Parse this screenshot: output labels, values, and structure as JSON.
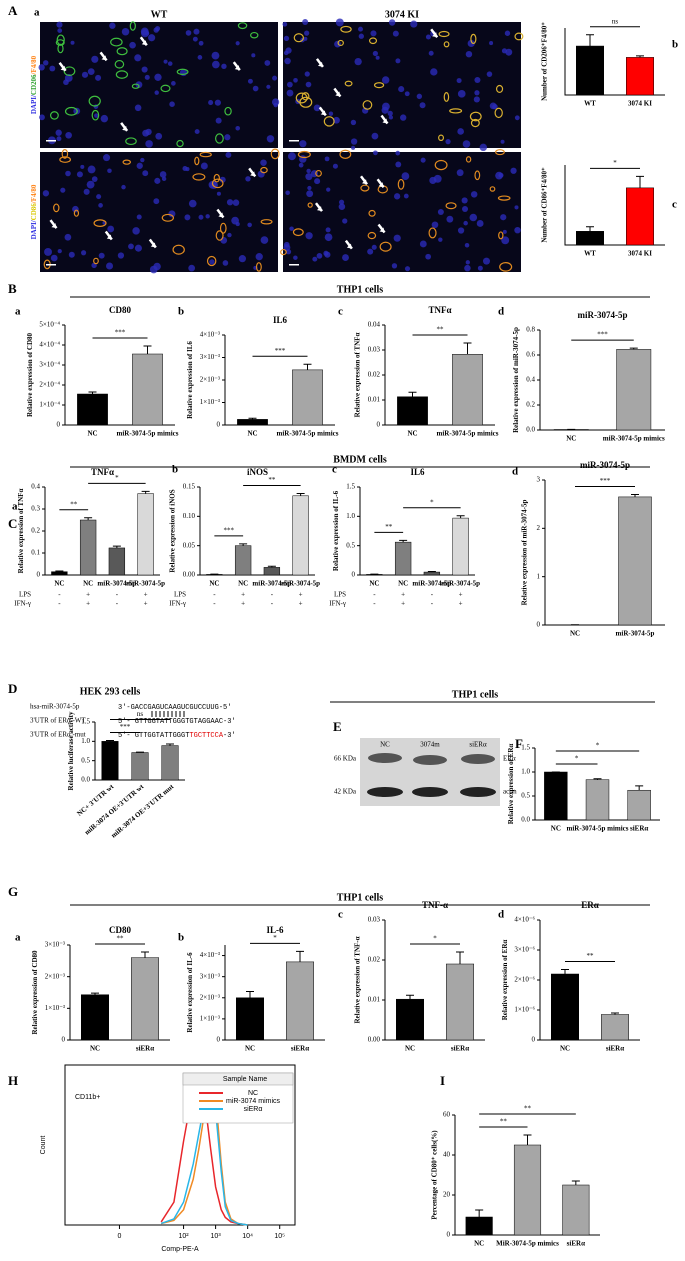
{
  "figure": {
    "panels": [
      "A",
      "B",
      "C",
      "D",
      "E",
      "F",
      "G",
      "H",
      "I"
    ],
    "headers": [
      "THP1 cells",
      "BMDM cells",
      "HEK 293 cells",
      "THP1 cells",
      "THP1 cells"
    ],
    "micro": {
      "sublabel": "a",
      "columns": [
        "WT",
        "3074 KI"
      ],
      "rows": [
        [
          "DAPI/",
          "CD206",
          "/F4/80"
        ],
        [
          "DAPI/",
          "CD86",
          "/F4/80"
        ]
      ]
    },
    "sequences": {
      "names": [
        "hsa-miR-3074-5p",
        "3'UTR of ERα -WT",
        "3'UTR of ERα -mut"
      ],
      "seqs": [
        "3'-GACCGAGUCAAGUCGUCCUUG-5'",
        "5'- GTTGGTATTGGGTGTAGGAAC-3'"
      ],
      "mut": [
        "5'- GTTGGTATTGGGT",
        "TGCTTCCA",
        "-3'"
      ]
    },
    "blot": {
      "lanes": [
        "NC",
        "3074m",
        "siERα"
      ],
      "markers": [
        "66 KDa",
        "42 KDa"
      ],
      "proteins": [
        "ERα",
        "actin"
      ]
    }
  },
  "chart_data": [
    {
      "type": "bar",
      "label": "b",
      "ylabel": "Number of CD206⁺F4/80⁺",
      "categories": [
        "WT",
        "3074 KI"
      ],
      "values": [
        95,
        73
      ],
      "errors": [
        22,
        3
      ],
      "colors": [
        "#000000",
        "#ff0000"
      ],
      "ylim": [
        0,
        130
      ],
      "sig": [
        {
          "from": 0,
          "to": 1,
          "label": "ns"
        }
      ]
    },
    {
      "type": "bar",
      "label": "c",
      "ylabel": "Number of CD86⁺F4/80⁺",
      "categories": [
        "WT",
        "3074 KI"
      ],
      "values": [
        6,
        25
      ],
      "errors": [
        2,
        5
      ],
      "colors": [
        "#000000",
        "#ff0000"
      ],
      "ylim": [
        0,
        35
      ],
      "sig": [
        {
          "from": 0,
          "to": 1,
          "label": "*"
        }
      ]
    },
    {
      "type": "bar",
      "label": "a",
      "title": "CD80",
      "ylabel": "Relative expression of CD80",
      "categories": [
        "NC",
        "miR-3074-5p mimics"
      ],
      "values": [
        0.000155,
        0.000355
      ],
      "errors": [
        1e-05,
        4e-05
      ],
      "colors": [
        "#000000",
        "#a6a6a6"
      ],
      "ylim": [
        0,
        0.0005
      ],
      "yticks": [
        0,
        {
          "value": 0.0001,
          "label": "1×10⁻⁴"
        },
        {
          "value": 0.0002,
          "label": "2×10⁻⁴"
        },
        {
          "value": 0.0003,
          "label": "3×10⁻⁴"
        },
        {
          "value": 0.0004,
          "label": "4×10⁻⁴"
        },
        {
          "value": 0.0005,
          "label": "5×10⁻⁴"
        }
      ],
      "sig": [
        {
          "from": 0,
          "to": 1,
          "label": "***"
        }
      ]
    },
    {
      "type": "bar",
      "label": "b",
      "title": "IL6",
      "ylabel": "Relative expression of IL6",
      "categories": [
        "NC",
        "miR-3074-5p mimics"
      ],
      "values": [
        0.00025,
        0.00245
      ],
      "errors": [
        5e-05,
        0.00025
      ],
      "colors": [
        "#000000",
        "#a6a6a6"
      ],
      "ylim": [
        0,
        0.004
      ],
      "yticks": [
        0,
        {
          "value": 0.001,
          "label": "1×10⁻³"
        },
        {
          "value": 0.002,
          "label": "2×10⁻³"
        },
        {
          "value": 0.003,
          "label": "3×10⁻³"
        },
        {
          "value": 0.004,
          "label": "4×10⁻³"
        }
      ],
      "sig": [
        {
          "from": 0,
          "to": 1,
          "label": "***"
        }
      ]
    },
    {
      "type": "bar",
      "label": "c",
      "title": "TNFα",
      "ylabel": "Relative expression of TNFα",
      "categories": [
        "NC",
        "miR-3074-5p mimics"
      ],
      "values": [
        0.0113,
        0.0283
      ],
      "errors": [
        0.0018,
        0.0045
      ],
      "colors": [
        "#000000",
        "#a6a6a6"
      ],
      "ylim": [
        0,
        0.04
      ],
      "yticks": [
        0,
        0.01,
        0.02,
        0.03,
        0.04
      ],
      "sig": [
        {
          "from": 0,
          "to": 1,
          "label": "**"
        }
      ]
    },
    {
      "type": "bar",
      "label": "d",
      "title": "miR-3074-5p",
      "ylabel": "Relative expression of miR-3074-5p",
      "categories": [
        "NC",
        "miR-3074-5p mimics"
      ],
      "values": [
        0.004,
        0.645
      ],
      "errors": [
        0.001,
        0.01
      ],
      "colors": [
        "#000000",
        "#a6a6a6"
      ],
      "ylim": [
        0,
        0.8
      ],
      "yticks": [
        {
          "value": 0,
          "label": "0.0"
        },
        0.2,
        0.4,
        0.6,
        0.8
      ],
      "sig": [
        {
          "from": 0,
          "to": 1,
          "label": "***"
        }
      ]
    },
    {
      "type": "bar",
      "label": "a",
      "title": "TNFα",
      "ylabel": "Relative expression of TNFα",
      "categories": [
        "NC",
        "NC",
        "miR-3074-5p",
        "miR-3074-5p"
      ],
      "values": [
        0.015,
        0.25,
        0.123,
        0.37
      ],
      "errors": [
        0.003,
        0.01,
        0.008,
        0.01
      ],
      "colors": [
        "#000000",
        "#7f7f7f",
        "#595959",
        "#d9d9d9"
      ],
      "ylim": [
        0,
        0.4
      ],
      "yticks": [
        0,
        0.1,
        0.2,
        0.3,
        0.4
      ],
      "rows": [
        {
          "name": "LPS",
          "values": [
            "-",
            "+",
            "-",
            "+"
          ]
        },
        {
          "name": "IFN-γ",
          "values": [
            "-",
            "+",
            "-",
            "+"
          ]
        }
      ],
      "sig": [
        {
          "from": 0,
          "to": 1,
          "label": "**"
        },
        {
          "from": 1,
          "to": 3,
          "label": "*"
        }
      ]
    },
    {
      "type": "bar",
      "label": "b",
      "title": "iNOS",
      "ylabel": "Relative expression of iNOS",
      "categories": [
        "NC",
        "NC",
        "miR-3074-5p",
        "miR-3074-5p"
      ],
      "values": [
        0.001,
        0.05,
        0.013,
        0.135
      ],
      "errors": [
        0.0005,
        0.003,
        0.002,
        0.004
      ],
      "colors": [
        "#000000",
        "#7f7f7f",
        "#595959",
        "#d9d9d9"
      ],
      "ylim": [
        0,
        0.15
      ],
      "yticks": [
        {
          "value": 0,
          "label": "0.00"
        },
        0.05,
        {
          "value": 0.1,
          "label": "0.10"
        },
        0.15
      ],
      "rows": [
        {
          "name": "LPS",
          "values": [
            "-",
            "+",
            "-",
            "+"
          ]
        },
        {
          "name": "IFN-γ",
          "values": [
            "-",
            "+",
            "-",
            "+"
          ]
        }
      ],
      "sig": [
        {
          "from": 0,
          "to": 1,
          "label": "***"
        },
        {
          "from": 1,
          "to": 3,
          "label": "**"
        }
      ]
    },
    {
      "type": "bar",
      "label": "c",
      "title": "IL6",
      "ylabel": "Relative expression of IL-6",
      "categories": [
        "NC",
        "NC",
        "miR-3074-5p",
        "miR-3074-5p"
      ],
      "values": [
        0.01,
        0.56,
        0.05,
        0.97
      ],
      "errors": [
        0.005,
        0.03,
        0.01,
        0.04
      ],
      "colors": [
        "#000000",
        "#7f7f7f",
        "#595959",
        "#d9d9d9"
      ],
      "ylim": [
        0,
        1.5
      ],
      "yticks": [
        0,
        0.5,
        {
          "value": 1,
          "label": "1.0"
        },
        1.5
      ],
      "rows": [
        {
          "name": "LPS",
          "values": [
            "-",
            "+",
            "-",
            "+"
          ]
        },
        {
          "name": "IFN-γ",
          "values": [
            "-",
            "+",
            "-",
            "+"
          ]
        }
      ],
      "sig": [
        {
          "from": 0,
          "to": 1,
          "label": "**"
        },
        {
          "from": 1,
          "to": 3,
          "label": "*"
        }
      ]
    },
    {
      "type": "bar",
      "label": "d",
      "title": "miR-3074-5p",
      "ylabel": "Relative expression of miR-3074-5p",
      "categories": [
        "NC",
        "miR-3074-5p"
      ],
      "values": [
        0.005,
        2.65
      ],
      "errors": [
        0.001,
        0.05
      ],
      "colors": [
        "#000000",
        "#a6a6a6"
      ],
      "ylim": [
        0,
        3
      ],
      "yticks": [
        0,
        1,
        2,
        3
      ],
      "sig": [
        {
          "from": 0,
          "to": 1,
          "label": "***"
        }
      ]
    },
    {
      "type": "bar",
      "ylabel": "Relative luciferase activity",
      "categories": [
        "NC+ 3'UTR wt",
        "miR-3074 OE+3'UTR wt",
        "miR-3074 OE+3'UTR mut"
      ],
      "values": [
        1.0,
        0.71,
        0.89
      ],
      "errors": [
        0.02,
        0.01,
        0.04
      ],
      "colors": [
        "#000000",
        "#7f7f7f",
        "#7f7f7f"
      ],
      "ylim": [
        0,
        1.5
      ],
      "yticks": [
        {
          "value": 0,
          "label": "0.0"
        },
        0.5,
        {
          "value": 1,
          "label": "1.0"
        },
        1.5
      ],
      "rotate_labels": true,
      "sig": [
        {
          "from": 0,
          "to": 1,
          "label": "***"
        },
        {
          "from": 0,
          "to": 2,
          "label": "ns"
        }
      ]
    },
    {
      "type": "bar",
      "ylabel": "Relative expression of ERα",
      "categories": [
        "NC",
        "miR-3074-5p mimics",
        "siERα"
      ],
      "values": [
        1.0,
        0.84,
        0.62
      ],
      "errors": [
        0,
        0.02,
        0.09
      ],
      "colors": [
        "#000000",
        "#a6a6a6",
        "#a6a6a6"
      ],
      "ylim": [
        0,
        1.5
      ],
      "yticks": [
        {
          "value": 0,
          "label": "0.0"
        },
        0.5,
        {
          "value": 1,
          "label": "1.0"
        },
        1.5
      ],
      "sig": [
        {
          "from": 0,
          "to": 1,
          "label": "*"
        },
        {
          "from": 0,
          "to": 2,
          "label": "*"
        }
      ]
    },
    {
      "type": "bar",
      "label": "a",
      "title": "CD80",
      "ylabel": "Relative expression of CD80",
      "categories": [
        "NC",
        "siERα"
      ],
      "values": [
        0.00143,
        0.0026
      ],
      "errors": [
        5e-05,
        0.00018
      ],
      "colors": [
        "#000000",
        "#a6a6a6"
      ],
      "ylim": [
        0,
        0.003
      ],
      "yticks": [
        0,
        {
          "value": 0.001,
          "label": "1×10⁻³"
        },
        {
          "value": 0.002,
          "label": "2×10⁻³"
        },
        {
          "value": 0.003,
          "label": "3×10⁻³"
        }
      ],
      "sig": [
        {
          "from": 0,
          "to": 1,
          "label": "**"
        }
      ]
    },
    {
      "type": "bar",
      "label": "b",
      "title": "IL-6",
      "ylabel": "Relative expression of IL-6",
      "categories": [
        "NC",
        "siERα"
      ],
      "values": [
        0.002,
        0.0037
      ],
      "errors": [
        0.0003,
        0.0005
      ],
      "colors": [
        "#000000",
        "#a6a6a6"
      ],
      "ylim": [
        0,
        0.0045
      ],
      "yticks": [
        0,
        {
          "value": 0.001,
          "label": "1×10⁻³"
        },
        {
          "value": 0.002,
          "label": "2×10⁻³"
        },
        {
          "value": 0.003,
          "label": "3×10⁻³"
        },
        {
          "value": 0.004,
          "label": "4×10⁻³"
        }
      ],
      "sig": [
        {
          "from": 0,
          "to": 1,
          "label": "*"
        }
      ]
    },
    {
      "type": "bar",
      "label": "c",
      "title": "TNF-α",
      "ylabel": "Relative expression of TNF-α",
      "categories": [
        "NC",
        "siERα"
      ],
      "values": [
        0.0102,
        0.019
      ],
      "errors": [
        0.001,
        0.003
      ],
      "colors": [
        "#000000",
        "#a6a6a6"
      ],
      "ylim": [
        0,
        0.03
      ],
      "yticks": [
        {
          "value": 0,
          "label": "0.00"
        },
        0.01,
        0.02,
        0.03
      ],
      "sig": [
        {
          "from": 0,
          "to": 1,
          "label": "*"
        }
      ]
    },
    {
      "type": "bar",
      "label": "d",
      "title": "ERα",
      "ylabel": "Relative expression of ERα",
      "categories": [
        "NC",
        "siERα"
      ],
      "values": [
        2.2e-06,
        8.5e-07
      ],
      "errors": [
        1.5e-07,
        5e-08
      ],
      "colors": [
        "#000000",
        "#a6a6a6"
      ],
      "ylim": [
        0,
        4e-06
      ],
      "yticks": [
        0,
        {
          "value": 1e-06,
          "label": "1×10⁻⁶"
        },
        {
          "value": 2e-06,
          "label": "2×10⁻⁶"
        },
        {
          "value": 3e-06,
          "label": "3×10⁻⁶"
        },
        {
          "value": 4e-06,
          "label": "4×10⁻⁶"
        }
      ],
      "sig": [
        {
          "from": 0,
          "to": 1,
          "label": "**"
        }
      ]
    },
    {
      "type": "line",
      "annotation": "CD11b+",
      "ylabel": "Count",
      "xlabel": "Comp-PE-A",
      "xscale": "biexponential",
      "xlim": [
        -50,
        300000
      ],
      "ylim": [
        0,
        105
      ],
      "xticks": [
        0,
        {
          "value": 100,
          "label": "10²"
        },
        {
          "value": 1000,
          "label": "10³"
        },
        {
          "value": 10000,
          "label": "10⁴"
        },
        {
          "value": 100000,
          "label": "10⁵"
        }
      ],
      "legend_title": "Sample Name",
      "legend": "upper right",
      "x": [
        20,
        50,
        100,
        200,
        300,
        500,
        700,
        1000,
        1500,
        2000,
        3000,
        5000,
        10000
      ],
      "series": [
        {
          "name": "NC",
          "color": "#e8262b",
          "values": [
            2,
            15,
            55,
            90,
            95,
            75,
            50,
            25,
            10,
            5,
            2,
            1,
            0
          ]
        },
        {
          "name": "miR-3074 mimics",
          "color": "#f08a24",
          "values": [
            1,
            3,
            10,
            30,
            50,
            80,
            97,
            85,
            40,
            15,
            4,
            1,
            0
          ]
        },
        {
          "name": "siERα",
          "color": "#29b6e8",
          "values": [
            1,
            4,
            15,
            40,
            60,
            85,
            95,
            75,
            35,
            12,
            3,
            1,
            0
          ]
        }
      ]
    },
    {
      "type": "bar",
      "ylabel": "Percentage of CD80⁺ cells(%)",
      "categories": [
        "NC",
        "MiR-3074-5p mimics",
        "siERα"
      ],
      "values": [
        9,
        45,
        25
      ],
      "errors": [
        3.5,
        5,
        2
      ],
      "colors": [
        "#000000",
        "#a6a6a6",
        "#a6a6a6"
      ],
      "ylim": [
        0,
        60
      ],
      "yticks": [
        0,
        20,
        40,
        60
      ],
      "sig": [
        {
          "from": 0,
          "to": 1,
          "label": "**"
        },
        {
          "from": 0,
          "to": 2,
          "label": "**"
        }
      ]
    }
  ]
}
